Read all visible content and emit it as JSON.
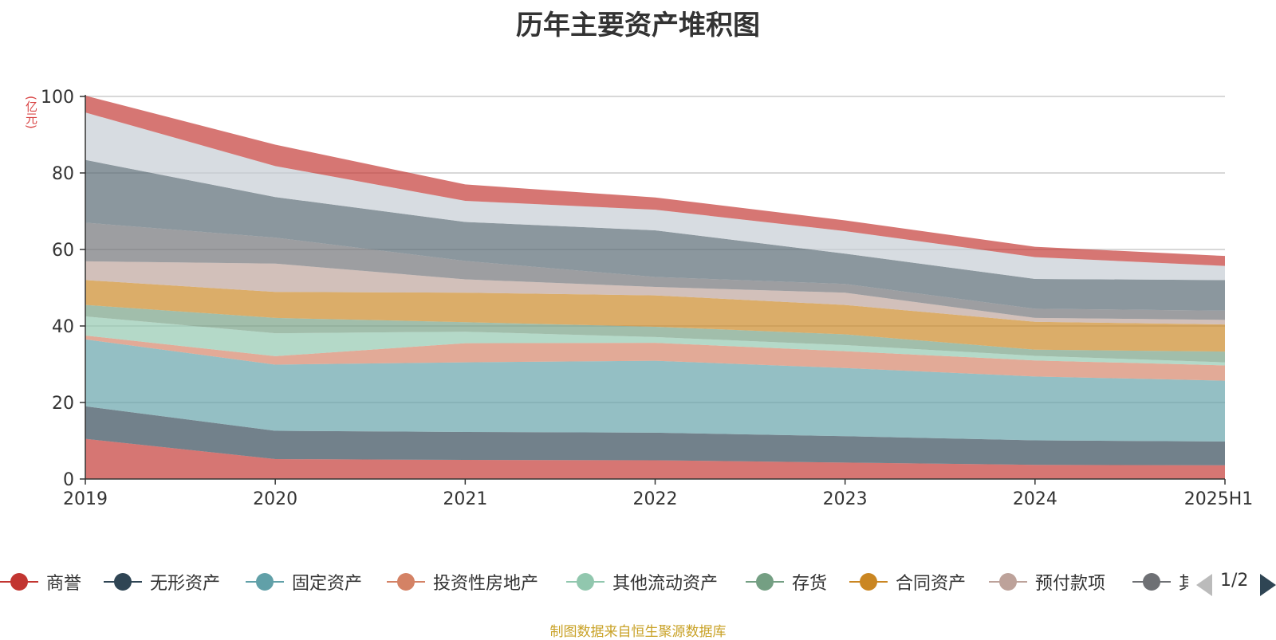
{
  "chart_data": {
    "type": "area",
    "stacked": true,
    "title": "历年主要资产堆积图",
    "unit_label": "(亿元)",
    "categories": [
      "2019",
      "2020",
      "2021",
      "2022",
      "2023",
      "2024",
      "2025H1"
    ],
    "ylim": [
      0,
      100
    ],
    "yticks": [
      0,
      20,
      40,
      60,
      80,
      100
    ],
    "grid": true,
    "legend_position": "bottom",
    "series": [
      {
        "name": "商誉",
        "color": "#c23531",
        "values": [
          10.5,
          5.2,
          5.0,
          4.9,
          4.3,
          3.7,
          3.6
        ]
      },
      {
        "name": "无形资产",
        "color": "#2f4554",
        "values": [
          8.5,
          7.4,
          7.3,
          7.2,
          6.9,
          6.4,
          6.2
        ]
      },
      {
        "name": "固定资产",
        "color": "#61a0a8",
        "values": [
          17.5,
          17.3,
          18.2,
          18.8,
          17.8,
          16.7,
          15.9
        ]
      },
      {
        "name": "投资性房地产",
        "color": "#d48265",
        "values": [
          1.0,
          2.2,
          5.0,
          4.7,
          4.4,
          4.2,
          4.0
        ]
      },
      {
        "name": "其他流动资产",
        "color": "#91c7ae",
        "values": [
          5.0,
          6.0,
          3.0,
          1.5,
          1.6,
          1.2,
          0.8
        ]
      },
      {
        "name": "存货",
        "color": "#749f83",
        "values": [
          3.0,
          4.0,
          2.5,
          2.7,
          2.8,
          1.6,
          2.8
        ]
      },
      {
        "name": "合同资产",
        "color": "#ca8622",
        "values": [
          6.5,
          6.8,
          7.7,
          8.2,
          7.7,
          7.3,
          7.1
        ]
      },
      {
        "name": "预付款项",
        "color": "#bda29a",
        "values": [
          4.9,
          7.4,
          3.5,
          2.2,
          3.2,
          1.0,
          1.2
        ]
      },
      {
        "name": "",
        "color": "#6e7074",
        "values": [
          10.1,
          6.8,
          4.8,
          2.6,
          2.3,
          2.4,
          2.4
        ]
      },
      {
        "name": "",
        "color": "#546570",
        "values": [
          16.4,
          10.6,
          10.2,
          12.2,
          7.9,
          7.8,
          8.0
        ]
      },
      {
        "name": "",
        "color": "#c4ccd3",
        "values": [
          12.4,
          8.1,
          5.5,
          5.4,
          5.9,
          5.7,
          3.7
        ]
      },
      {
        "name": "",
        "color": "#c23531",
        "values": [
          4.4,
          5.6,
          4.3,
          3.2,
          2.8,
          2.7,
          2.6
        ]
      }
    ]
  },
  "legend": {
    "items": [
      "商誉",
      "无形资产",
      "固定资产",
      "投资性房地产",
      "其他流动资产",
      "存货",
      "合同资产",
      "预付款项",
      "其"
    ],
    "page_indicator": "1/2"
  },
  "footer": {
    "source_note": "制图数据来自恒生聚源数据库"
  },
  "colors": {
    "axis": "#333333",
    "grid": "#cccccc",
    "text": "#333333",
    "unit": "#d94545",
    "source": "#c9a227"
  }
}
